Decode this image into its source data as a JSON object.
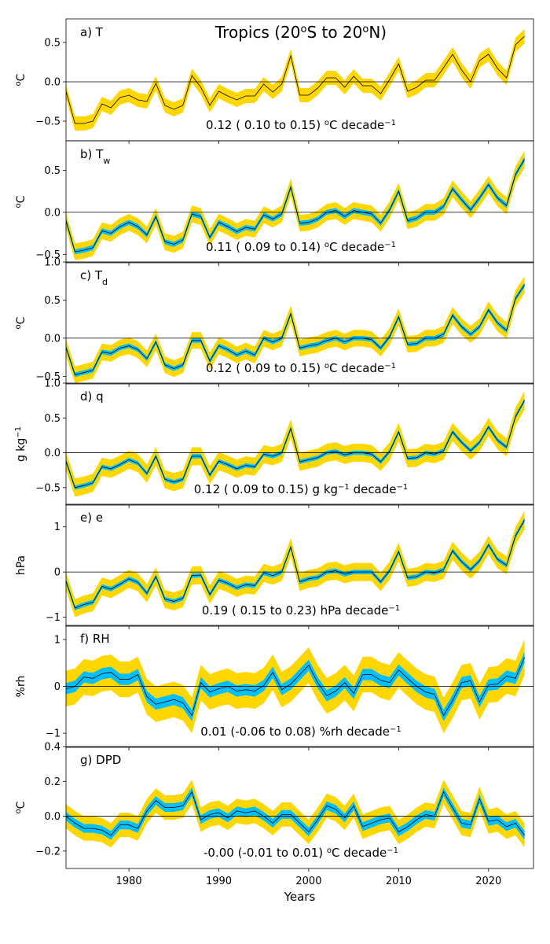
{
  "figure_title_parts": [
    "Tropics (20",
    "o",
    "S to 20",
    "o",
    "N)"
  ],
  "xlabel": "Years",
  "colors": {
    "outer_band": "#ffd700",
    "inner_band": "#00bfff",
    "line": "#000000",
    "zero_line": "#000000"
  },
  "chart_data": [
    {
      "type": "line",
      "panel": "a",
      "label_parts": [
        "a) T"
      ],
      "ylabel": "oC",
      "ylim": [
        -0.75,
        0.8
      ],
      "yticks": [
        -0.5,
        0.0,
        0.5
      ],
      "ytick_labels": [
        "−0.5",
        "0.0",
        "0.5"
      ],
      "trend_text": "0.12 ( 0.10 to  0.15) oC decade-1",
      "inner_band": false,
      "years": [
        1973,
        1974,
        1975,
        1976,
        1977,
        1978,
        1979,
        1980,
        1981,
        1982,
        1983,
        1984,
        1985,
        1986,
        1987,
        1988,
        1989,
        1990,
        1991,
        1992,
        1993,
        1994,
        1995,
        1996,
        1997,
        1998,
        1999,
        2000,
        2001,
        2002,
        2003,
        2004,
        2005,
        2006,
        2007,
        2008,
        2009,
        2010,
        2011,
        2012,
        2013,
        2014,
        2015,
        2016,
        2017,
        2018,
        2019,
        2020,
        2021,
        2022,
        2023,
        2024
      ],
      "values": [
        -0.12,
        -0.53,
        -0.53,
        -0.5,
        -0.28,
        -0.33,
        -0.2,
        -0.17,
        -0.23,
        -0.25,
        -0.02,
        -0.3,
        -0.35,
        -0.3,
        0.08,
        -0.07,
        -0.3,
        -0.12,
        -0.18,
        -0.23,
        -0.18,
        -0.18,
        -0.03,
        -0.13,
        -0.03,
        0.33,
        -0.17,
        -0.17,
        -0.08,
        0.05,
        0.05,
        -0.07,
        0.07,
        -0.05,
        -0.05,
        -0.15,
        0.03,
        0.23,
        -0.12,
        -0.07,
        0.02,
        0.02,
        0.18,
        0.35,
        0.15,
        0.0,
        0.27,
        0.35,
        0.17,
        0.05,
        0.47,
        0.58
      ]
    },
    {
      "type": "line",
      "panel": "b",
      "label_parts": [
        "b) T",
        "w"
      ],
      "ylabel": "oC",
      "ylim": [
        -0.6,
        0.85
      ],
      "yticks": [
        -0.5,
        0.0,
        0.5
      ],
      "ytick_labels": [
        "−0.5",
        "0.0",
        "0.5"
      ],
      "trend_text": "0.11 ( 0.09 to  0.14) oC decade-1",
      "inner_band": true,
      "years": [
        1973,
        1974,
        1975,
        1976,
        1977,
        1978,
        1979,
        1980,
        1981,
        1982,
        1983,
        1984,
        1985,
        1986,
        1987,
        1988,
        1989,
        1990,
        1991,
        1992,
        1993,
        1994,
        1995,
        1996,
        1997,
        1998,
        1999,
        2000,
        2001,
        2002,
        2003,
        2004,
        2005,
        2006,
        2007,
        2008,
        2009,
        2010,
        2011,
        2012,
        2013,
        2014,
        2015,
        2016,
        2017,
        2018,
        2019,
        2020,
        2021,
        2022,
        2023,
        2024
      ],
      "values": [
        -0.1,
        -0.47,
        -0.45,
        -0.42,
        -0.22,
        -0.25,
        -0.17,
        -0.12,
        -0.17,
        -0.27,
        -0.05,
        -0.35,
        -0.38,
        -0.33,
        -0.02,
        -0.05,
        -0.3,
        -0.12,
        -0.17,
        -0.23,
        -0.18,
        -0.2,
        -0.03,
        -0.08,
        -0.02,
        0.3,
        -0.13,
        -0.12,
        -0.08,
        0.0,
        0.02,
        -0.05,
        0.02,
        0.0,
        -0.02,
        -0.13,
        0.03,
        0.25,
        -0.1,
        -0.07,
        0.0,
        0.0,
        0.07,
        0.28,
        0.15,
        0.03,
        0.17,
        0.33,
        0.17,
        0.08,
        0.45,
        0.63
      ]
    },
    {
      "type": "line",
      "panel": "c",
      "label_parts": [
        "c) T",
        "d"
      ],
      "ylabel": "oC",
      "ylim": [
        -0.6,
        1.0
      ],
      "yticks": [
        -0.5,
        0.0,
        0.5,
        1.0
      ],
      "ytick_labels": [
        "−0.5",
        "0.0",
        "0.5",
        "1.0"
      ],
      "trend_text": "0.12 ( 0.09 to  0.15) oC decade-1",
      "inner_band": true,
      "years": [
        1973,
        1974,
        1975,
        1976,
        1977,
        1978,
        1979,
        1980,
        1981,
        1982,
        1983,
        1984,
        1985,
        1986,
        1987,
        1988,
        1989,
        1990,
        1991,
        1992,
        1993,
        1994,
        1995,
        1996,
        1997,
        1998,
        1999,
        2000,
        2001,
        2002,
        2003,
        2004,
        2005,
        2006,
        2007,
        2008,
        2009,
        2010,
        2011,
        2012,
        2013,
        2014,
        2015,
        2016,
        2017,
        2018,
        2019,
        2020,
        2021,
        2022,
        2023,
        2024
      ],
      "values": [
        -0.12,
        -0.48,
        -0.45,
        -0.42,
        -0.18,
        -0.2,
        -0.13,
        -0.1,
        -0.15,
        -0.27,
        -0.05,
        -0.35,
        -0.4,
        -0.35,
        -0.03,
        -0.03,
        -0.3,
        -0.1,
        -0.15,
        -0.22,
        -0.17,
        -0.22,
        0.0,
        -0.05,
        0.0,
        0.32,
        -0.13,
        -0.1,
        -0.08,
        -0.03,
        0.0,
        -0.05,
        0.0,
        0.0,
        -0.02,
        -0.13,
        0.02,
        0.28,
        -0.08,
        -0.07,
        0.0,
        0.0,
        0.05,
        0.3,
        0.15,
        0.05,
        0.15,
        0.37,
        0.2,
        0.1,
        0.52,
        0.7
      ]
    },
    {
      "type": "line",
      "panel": "d",
      "label_parts": [
        "d) q"
      ],
      "ylabel": "g kg-1",
      "ylim": [
        -0.75,
        1.0
      ],
      "yticks": [
        -0.5,
        0.0,
        0.5,
        1.0
      ],
      "ytick_labels": [
        "−0.5",
        "0.0",
        "0.5",
        "1.0"
      ],
      "trend_text": "0.12 ( 0.09 to  0.15) g kg-1 decade-1",
      "inner_band": true,
      "years": [
        1973,
        1974,
        1975,
        1976,
        1977,
        1978,
        1979,
        1980,
        1981,
        1982,
        1983,
        1984,
        1985,
        1986,
        1987,
        1988,
        1989,
        1990,
        1991,
        1992,
        1993,
        1994,
        1995,
        1996,
        1997,
        1998,
        1999,
        2000,
        2001,
        2002,
        2003,
        2004,
        2005,
        2006,
        2007,
        2008,
        2009,
        2010,
        2011,
        2012,
        2013,
        2014,
        2015,
        2016,
        2017,
        2018,
        2019,
        2020,
        2021,
        2022,
        2023,
        2024
      ],
      "values": [
        -0.12,
        -0.5,
        -0.47,
        -0.43,
        -0.2,
        -0.23,
        -0.17,
        -0.1,
        -0.15,
        -0.3,
        -0.05,
        -0.38,
        -0.42,
        -0.38,
        -0.05,
        -0.05,
        -0.32,
        -0.12,
        -0.17,
        -0.23,
        -0.18,
        -0.2,
        -0.02,
        -0.05,
        0.0,
        0.35,
        -0.13,
        -0.1,
        -0.07,
        0.0,
        0.02,
        -0.03,
        0.0,
        0.0,
        -0.02,
        -0.13,
        0.02,
        0.3,
        -0.08,
        -0.07,
        0.0,
        -0.02,
        0.03,
        0.3,
        0.15,
        0.03,
        0.15,
        0.37,
        0.18,
        0.08,
        0.52,
        0.75
      ]
    },
    {
      "type": "line",
      "panel": "e",
      "label_parts": [
        "e) e"
      ],
      "ylabel": "hPa",
      "ylim": [
        -1.2,
        1.5
      ],
      "yticks": [
        -1,
        0,
        1
      ],
      "ytick_labels": [
        "−1",
        "0",
        "1"
      ],
      "trend_text": "0.19 ( 0.15 to  0.23) hPa decade-1",
      "inner_band": true,
      "years": [
        1973,
        1974,
        1975,
        1976,
        1977,
        1978,
        1979,
        1980,
        1981,
        1982,
        1983,
        1984,
        1985,
        1986,
        1987,
        1988,
        1989,
        1990,
        1991,
        1992,
        1993,
        1994,
        1995,
        1996,
        1997,
        1998,
        1999,
        2000,
        2001,
        2002,
        2003,
        2004,
        2005,
        2006,
        2007,
        2008,
        2009,
        2010,
        2011,
        2012,
        2013,
        2014,
        2015,
        2016,
        2017,
        2018,
        2019,
        2020,
        2021,
        2022,
        2023,
        2024
      ],
      "values": [
        -0.2,
        -0.8,
        -0.72,
        -0.67,
        -0.32,
        -0.38,
        -0.27,
        -0.15,
        -0.23,
        -0.47,
        -0.1,
        -0.6,
        -0.65,
        -0.58,
        -0.08,
        -0.07,
        -0.5,
        -0.18,
        -0.25,
        -0.35,
        -0.28,
        -0.3,
        -0.02,
        -0.08,
        0.0,
        0.55,
        -0.22,
        -0.15,
        -0.12,
        0.0,
        0.03,
        -0.05,
        0.0,
        0.0,
        0.0,
        -0.22,
        0.03,
        0.45,
        -0.13,
        -0.1,
        0.0,
        -0.02,
        0.05,
        0.47,
        0.23,
        0.05,
        0.25,
        0.6,
        0.28,
        0.15,
        0.8,
        1.15
      ]
    },
    {
      "type": "line",
      "panel": "f",
      "label_parts": [
        "f) RH"
      ],
      "ylabel": "%rh",
      "ylim": [
        -1.3,
        1.3
      ],
      "yticks": [
        -1,
        0,
        1
      ],
      "ytick_labels": [
        "−1",
        "0",
        "1"
      ],
      "trend_text": "0.01 (-0.06 to  0.08) %rh decade-1",
      "inner_band": true,
      "years": [
        1973,
        1974,
        1975,
        1976,
        1977,
        1978,
        1979,
        1980,
        1981,
        1982,
        1983,
        1984,
        1985,
        1986,
        1987,
        1988,
        1989,
        1990,
        1991,
        1992,
        1993,
        1994,
        1995,
        1996,
        1997,
        1998,
        1999,
        2000,
        2001,
        2002,
        2003,
        2004,
        2005,
        2006,
        2007,
        2008,
        2009,
        2010,
        2011,
        2012,
        2013,
        2014,
        2015,
        2016,
        2017,
        2018,
        2019,
        2020,
        2021,
        2022,
        2023,
        2024
      ],
      "values": [
        -0.05,
        0.0,
        0.2,
        0.17,
        0.27,
        0.3,
        0.15,
        0.15,
        0.25,
        -0.22,
        -0.38,
        -0.33,
        -0.28,
        -0.35,
        -0.62,
        0.08,
        -0.12,
        -0.05,
        0.0,
        -0.1,
        -0.07,
        -0.1,
        0.02,
        0.3,
        -0.07,
        0.05,
        0.25,
        0.45,
        0.08,
        -0.2,
        -0.1,
        0.08,
        -0.15,
        0.25,
        0.25,
        0.13,
        0.08,
        0.35,
        0.17,
        0.0,
        -0.12,
        -0.17,
        -0.62,
        -0.3,
        0.08,
        0.12,
        -0.33,
        0.03,
        0.05,
        0.22,
        0.17,
        0.62
      ]
    },
    {
      "type": "line",
      "panel": "g",
      "label_parts": [
        "g) DPD"
      ],
      "ylabel": "oC",
      "ylim": [
        -0.3,
        0.4
      ],
      "yticks": [
        -0.2,
        0.0,
        0.2,
        0.4
      ],
      "ytick_labels": [
        "−0.2",
        "0.0",
        "0.2",
        "0.4"
      ],
      "trend_text": "-0.00 (-0.01 to  0.01) oC decade-1",
      "inner_band": true,
      "years": [
        1973,
        1974,
        1975,
        1976,
        1977,
        1978,
        1979,
        1980,
        1981,
        1982,
        1983,
        1984,
        1985,
        1986,
        1987,
        1988,
        1989,
        1990,
        1991,
        1992,
        1993,
        1994,
        1995,
        1996,
        1997,
        1998,
        1999,
        2000,
        2001,
        2002,
        2003,
        2004,
        2005,
        2006,
        2007,
        2008,
        2009,
        2010,
        2011,
        2012,
        2013,
        2014,
        2015,
        2016,
        2017,
        2018,
        2019,
        2020,
        2021,
        2022,
        2023,
        2024
      ],
      "values": [
        0.0,
        -0.04,
        -0.07,
        -0.07,
        -0.08,
        -0.11,
        -0.05,
        -0.05,
        -0.07,
        0.03,
        0.09,
        0.05,
        0.05,
        0.06,
        0.14,
        -0.02,
        0.01,
        0.02,
        -0.01,
        0.03,
        0.02,
        0.03,
        0.0,
        -0.04,
        0.01,
        0.01,
        -0.04,
        -0.09,
        -0.02,
        0.06,
        0.04,
        -0.01,
        0.06,
        -0.06,
        -0.04,
        -0.02,
        -0.01,
        -0.09,
        -0.06,
        -0.02,
        0.01,
        0.0,
        0.14,
        0.05,
        -0.04,
        -0.05,
        0.1,
        -0.03,
        -0.02,
        -0.06,
        -0.04,
        -0.11
      ]
    }
  ],
  "xaxis": {
    "xlim": [
      1973,
      2025
    ],
    "xticks": [
      1980,
      1990,
      2000,
      2010,
      2020
    ],
    "xtick_labels": [
      "1980",
      "1990",
      "2000",
      "2010",
      "2020"
    ]
  }
}
